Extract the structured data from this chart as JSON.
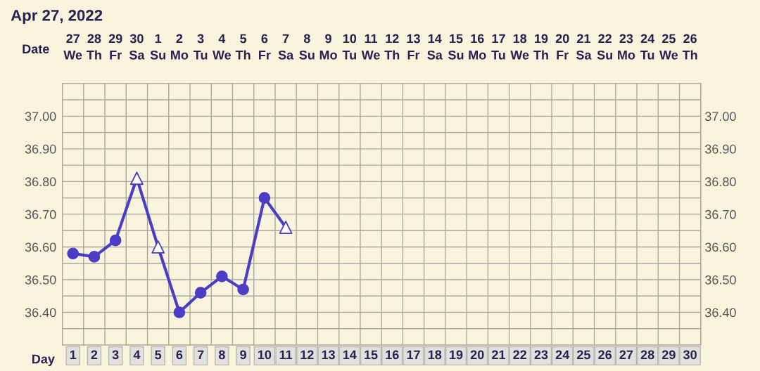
{
  "chart_data": {
    "type": "line",
    "title": "Apr 27, 2022",
    "xlabel": "Day",
    "x2label": "Date",
    "ylim": [
      36.3,
      37.1
    ],
    "categories": [
      "1",
      "2",
      "3",
      "4",
      "5",
      "6",
      "7",
      "8",
      "9",
      "10",
      "11",
      "12",
      "13",
      "14",
      "15",
      "16",
      "17",
      "18",
      "19",
      "20",
      "21",
      "22",
      "23",
      "24",
      "25",
      "26",
      "27",
      "28",
      "29",
      "30"
    ],
    "annotations": [
      "27\nWe",
      "28\nTh",
      "29\nFr",
      "30\nSa",
      "1\nSu",
      "2\nMo",
      "3\nTu",
      "4\nWe",
      "5\nTh",
      "6\nFr",
      "7\nSa",
      "8\nSu",
      "9\nMo",
      "10\nTu",
      "11\nWe",
      "12\nTh",
      "13\nFr",
      "14\nSa",
      "15\nSu",
      "16\nMo",
      "17\nTu",
      "18\nWe",
      "19\nTh",
      "20\nFr",
      "21\nSa",
      "22\nSu",
      "23\nMo",
      "24\nTu",
      "25\nWe",
      "26\nTh"
    ],
    "yticks": [
      {
        "value": 36.35,
        "label": null
      },
      {
        "value": 36.4,
        "label": "36.40"
      },
      {
        "value": 36.45,
        "label": null
      },
      {
        "value": 36.5,
        "label": "36.50"
      },
      {
        "value": 36.55,
        "label": null
      },
      {
        "value": 36.6,
        "label": "36.60"
      },
      {
        "value": 36.65,
        "label": null
      },
      {
        "value": 36.7,
        "label": "36.70"
      },
      {
        "value": 36.75,
        "label": null
      },
      {
        "value": 36.8,
        "label": "36.80"
      },
      {
        "value": 36.85,
        "label": null
      },
      {
        "value": 36.9,
        "label": "36.90"
      },
      {
        "value": 36.95,
        "label": null
      },
      {
        "value": 37.0,
        "label": "37.00"
      },
      {
        "value": 37.05,
        "label": null
      }
    ],
    "y2lim": [
      36.3,
      37.1
    ],
    "y2ticks": [
      {
        "value": 36.35,
        "label": null
      },
      {
        "value": 36.4,
        "label": "36.40"
      },
      {
        "value": 36.45,
        "label": null
      },
      {
        "value": 36.5,
        "label": "36.50"
      },
      {
        "value": 36.55,
        "label": null
      },
      {
        "value": 36.6,
        "label": "36.60"
      },
      {
        "value": 36.65,
        "label": null
      },
      {
        "value": 36.7,
        "label": "36.70"
      },
      {
        "value": 36.75,
        "label": null
      },
      {
        "value": 36.8,
        "label": "36.80"
      },
      {
        "value": 36.85,
        "label": null
      },
      {
        "value": 36.9,
        "label": "36.90"
      },
      {
        "value": 36.95,
        "label": null
      },
      {
        "value": 37.0,
        "label": "37.00"
      },
      {
        "value": 37.05,
        "label": null
      }
    ],
    "grid": true,
    "series": [
      {
        "marker": "none",
        "color": "#4b3dc4",
        "values": [
          36.58,
          36.57,
          36.62,
          36.81,
          36.6,
          36.4,
          36.46,
          36.51,
          36.47,
          36.75,
          36.66,
          null,
          null,
          null,
          null,
          null,
          null,
          null,
          null,
          null,
          null,
          null,
          null,
          null,
          null,
          null,
          null,
          null,
          null,
          null
        ]
      },
      {
        "type": "scatter",
        "marker": "circle",
        "color": "#4b3dc4",
        "values": [
          36.58,
          36.57,
          36.62,
          null,
          null,
          36.4,
          36.46,
          36.51,
          36.47,
          36.75,
          null,
          null,
          null,
          null,
          null,
          null,
          null,
          null,
          null,
          null,
          null,
          null,
          null,
          null,
          null,
          null,
          null,
          null,
          null,
          null
        ]
      },
      {
        "type": "scatter",
        "marker": "triangle",
        "color": "#4b3dc4",
        "values": [
          null,
          null,
          null,
          36.81,
          36.6,
          null,
          null,
          null,
          null,
          null,
          36.66,
          null,
          null,
          null,
          null,
          null,
          null,
          null,
          null,
          null,
          null,
          null,
          null,
          null,
          null,
          null,
          null,
          null,
          null,
          null
        ]
      }
    ]
  }
}
